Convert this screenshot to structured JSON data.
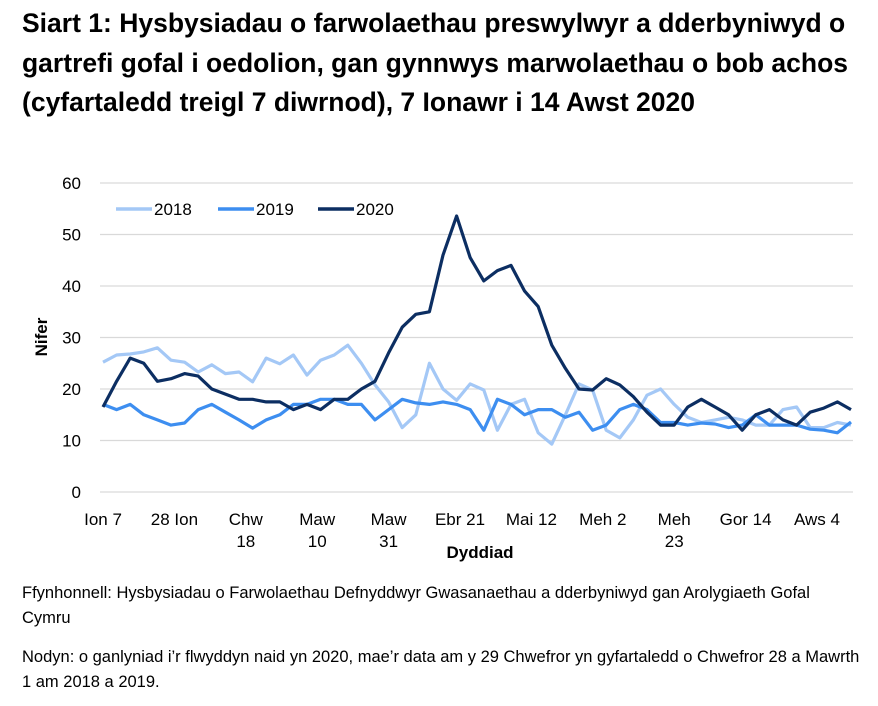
{
  "chart_data": {
    "type": "line",
    "title": "Siart 1: Hysbysiadau o farwolaethau preswylwyr a dderbyniwyd o gartrefi gofal i oedolion, gan gynnwys marwolaethau o bob achos (cyfartaledd treigl 7 diwrnod), 7 Ionawr i 14 Awst 2020",
    "xlabel": "Dyddiad",
    "ylabel": "Nifer",
    "ylim": [
      0,
      60
    ],
    "yticks": [
      "0",
      "10",
      "20",
      "30",
      "40",
      "50",
      "60"
    ],
    "xlim": [
      "2020-01-07",
      "2020-08-14"
    ],
    "xticks": [
      {
        "date": "2020-01-07",
        "label": [
          "Ion 7"
        ]
      },
      {
        "date": "2020-01-28",
        "label": [
          "28 Ion"
        ]
      },
      {
        "date": "2020-02-18",
        "label": [
          "Chw",
          "18"
        ]
      },
      {
        "date": "2020-03-10",
        "label": [
          "Maw",
          "10"
        ]
      },
      {
        "date": "2020-03-31",
        "label": [
          "Maw",
          "31"
        ]
      },
      {
        "date": "2020-04-21",
        "label": [
          "Ebr 21"
        ]
      },
      {
        "date": "2020-05-12",
        "label": [
          "Mai 12"
        ]
      },
      {
        "date": "2020-06-02",
        "label": [
          "Meh 2"
        ]
      },
      {
        "date": "2020-06-23",
        "label": [
          "Meh",
          "23"
        ]
      },
      {
        "date": "2020-07-14",
        "label": [
          "Gor 14"
        ]
      },
      {
        "date": "2020-08-04",
        "label": [
          "Aws 4"
        ]
      }
    ],
    "grid": true,
    "legend_position": "top-left",
    "x": [
      "2020-01-07",
      "2020-01-11",
      "2020-01-15",
      "2020-01-19",
      "2020-01-23",
      "2020-01-27",
      "2020-01-31",
      "2020-02-04",
      "2020-02-08",
      "2020-02-12",
      "2020-02-16",
      "2020-02-20",
      "2020-02-24",
      "2020-02-28",
      "2020-03-03",
      "2020-03-07",
      "2020-03-11",
      "2020-03-15",
      "2020-03-19",
      "2020-03-23",
      "2020-03-27",
      "2020-03-31",
      "2020-04-04",
      "2020-04-08",
      "2020-04-12",
      "2020-04-16",
      "2020-04-20",
      "2020-04-24",
      "2020-04-28",
      "2020-05-02",
      "2020-05-06",
      "2020-05-10",
      "2020-05-14",
      "2020-05-18",
      "2020-05-22",
      "2020-05-26",
      "2020-05-30",
      "2020-06-03",
      "2020-06-07",
      "2020-06-11",
      "2020-06-15",
      "2020-06-19",
      "2020-06-23",
      "2020-06-27",
      "2020-07-01",
      "2020-07-05",
      "2020-07-09",
      "2020-07-13",
      "2020-07-17",
      "2020-07-21",
      "2020-07-25",
      "2020-07-29",
      "2020-08-02",
      "2020-08-06",
      "2020-08-10",
      "2020-08-14"
    ],
    "series": [
      {
        "name": "2018",
        "color": "#a4c8f6",
        "values": [
          25.2,
          26.6,
          26.8,
          27.2,
          28,
          25.6,
          25.2,
          23.3,
          24.7,
          23,
          23.3,
          21.4,
          26,
          24.9,
          26.6,
          22.7,
          25.6,
          26.6,
          28.5,
          25,
          20.8,
          17.5,
          12.5,
          15,
          25,
          20,
          17.8,
          21,
          19.8,
          12,
          17,
          18,
          11.5,
          9.3,
          15,
          21,
          19.8,
          12,
          10.5,
          14,
          18.8,
          20,
          17,
          14.5,
          13.5,
          14,
          14.5,
          14,
          13,
          13,
          16,
          16.5,
          12.5,
          12.5,
          13.5,
          13
        ]
      },
      {
        "name": "2019",
        "color": "#3d8ef0",
        "values": [
          17,
          16,
          17,
          15,
          14,
          13,
          13.4,
          16,
          17,
          15.5,
          14,
          12.4,
          14,
          15,
          17,
          17,
          18,
          18,
          17,
          17,
          14,
          16,
          18,
          17.3,
          17,
          17.5,
          17,
          16,
          12,
          18,
          17,
          15,
          16,
          16,
          14.5,
          15.5,
          12,
          13,
          16,
          17,
          16,
          13.5,
          13.5,
          13,
          13.4,
          13.2,
          12.5,
          13,
          15,
          13,
          13,
          13,
          12.2,
          12,
          11.5,
          13.6
        ]
      },
      {
        "name": "2020",
        "color": "#0c2e62",
        "values": [
          16.5,
          21.5,
          26,
          25,
          21.5,
          22,
          23,
          22.5,
          20,
          19,
          18,
          18,
          17.5,
          17.5,
          16,
          17,
          16,
          18,
          18,
          20,
          21.5,
          27,
          32,
          34.5,
          35,
          46,
          53.6,
          45.5,
          41,
          43,
          44,
          39,
          36,
          28.5,
          24,
          20,
          19.8,
          22,
          20.8,
          18.5,
          15.5,
          13,
          13,
          16.5,
          18,
          16.5,
          15,
          12,
          15,
          16,
          14,
          13,
          15.5,
          16.3,
          17.5,
          16
        ]
      }
    ]
  },
  "footer": {
    "source": "Ffynhonnell: Hysbysiadau o Farwolaethau Defnyddwyr Gwasanaethau a dderbyniwyd gan Arolygiaeth Gofal Cymru",
    "note": "Nodyn: o ganlyniad i’r flwyddyn naid yn 2020, mae’r data am y 29 Chwefror yn gyfartaledd o Chwefror 28 a Mawrth 1 am 2018 a 2019."
  }
}
